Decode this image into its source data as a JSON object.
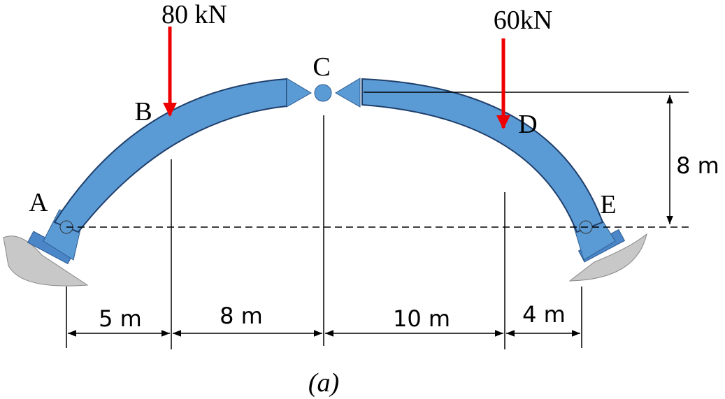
{
  "loads": [
    {
      "label": "80 kN"
    },
    {
      "label": "60kN"
    }
  ],
  "points": [
    "A",
    "B",
    "C",
    "D",
    "E"
  ],
  "height_dimension": "8 m",
  "span_dimensions": [
    "5 m",
    "8 m",
    "10 m",
    "4 m"
  ],
  "caption": "(a)"
}
